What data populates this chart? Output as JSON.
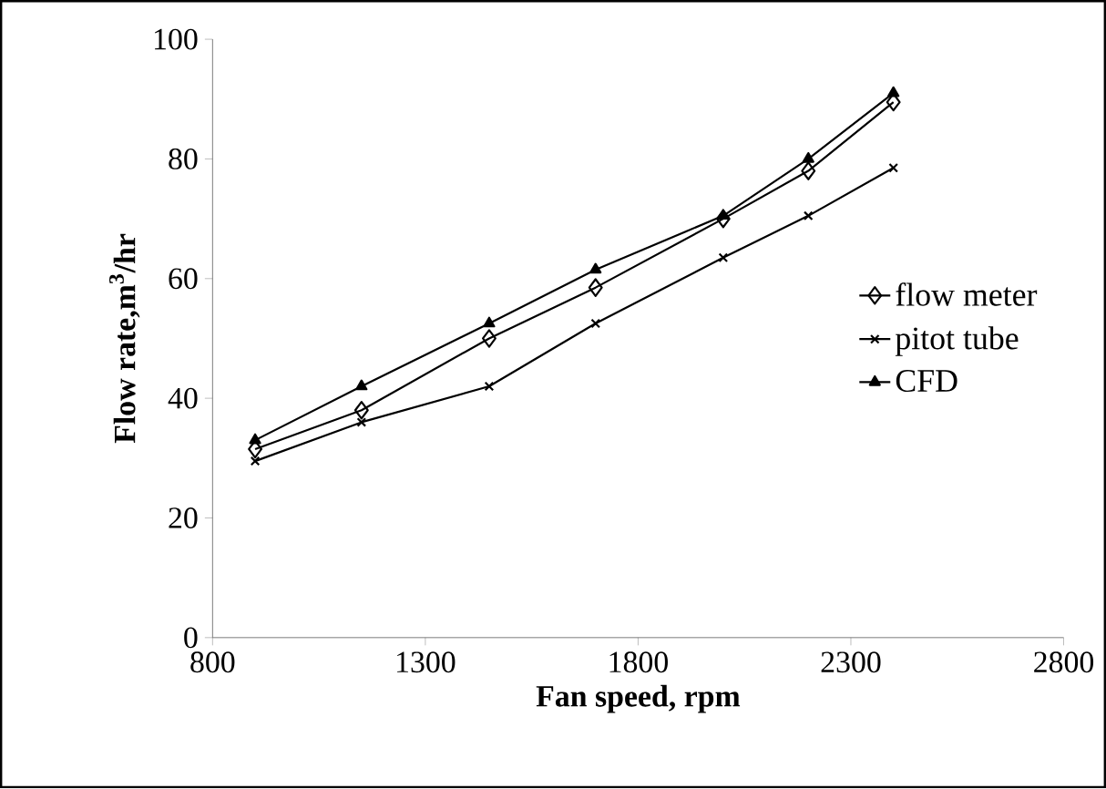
{
  "chart_data": {
    "type": "line",
    "xlabel": "Fan speed, rpm",
    "ylabel": "Flow rate,m$^{3}$/hr",
    "x": [
      900,
      1150,
      1450,
      1700,
      2000,
      2200,
      2400
    ],
    "series": [
      {
        "name": "flow meter",
        "color": "#000000",
        "marker": "diamond",
        "values": [
          31.5,
          38,
          50,
          58.5,
          70,
          78,
          89.5
        ]
      },
      {
        "name": "pitot tube",
        "color": "#000000",
        "marker": "cross",
        "values": [
          29.5,
          36,
          42,
          52.5,
          63.5,
          70.5,
          78.5
        ]
      },
      {
        "name": "CFD",
        "color": "#000000",
        "marker": "triangle",
        "values": [
          33,
          42,
          52.5,
          61.5,
          70.5,
          80,
          91
        ]
      }
    ],
    "xlim": [
      800,
      2800
    ],
    "xticks": [
      800,
      1300,
      1800,
      2300,
      2800
    ],
    "ylim": [
      0,
      100
    ],
    "yticks": [
      0,
      20,
      40,
      60,
      80,
      100
    ],
    "grid": false,
    "legend": "right",
    "line_style": "solid"
  }
}
